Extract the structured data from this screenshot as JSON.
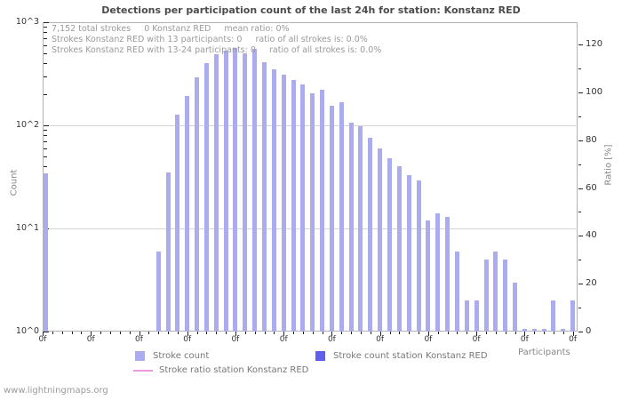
{
  "chart": {
    "title": "Detections per participation count of the last 24h for station: Konstanz RED",
    "info_lines": [
      "7,152 total strokes     0 Konstanz RED     mean ratio: 0%",
      "Strokes Konstanz RED with 13 participants: 0     ratio of all strokes is: 0.0%",
      "Strokes Konstanz RED with 13-24 participants: 0     ratio of all strokes is: 0.0%"
    ],
    "legend": [
      {
        "label": "Stroke count",
        "marker": "square",
        "color": "#aaacee"
      },
      {
        "label": "Stroke count station Konstanz RED",
        "marker": "square",
        "color": "#5f5feb"
      },
      {
        "label": "Stroke ratio station Konstanz RED",
        "marker": "line",
        "color": "#ee99dd"
      }
    ],
    "x_axis_title": "Participants",
    "y_axis_title": "Count",
    "y2_axis_title": "Ratio [%]",
    "footer": "www.lightningmaps.org"
  },
  "chart_data": {
    "type": "bar",
    "title": "Detections per participation count of the last 24h for station: Konstanz RED",
    "xlabel": "Participants",
    "ylabel": "Count",
    "y2label": "Ratio [%]",
    "y_scale": "log",
    "ylim": [
      1,
      1000
    ],
    "y_tick_labels": [
      "10^0",
      "10^1",
      "10^2",
      "10^3"
    ],
    "y2lim": [
      0,
      120
    ],
    "y2_ticks": [
      0,
      20,
      40,
      60,
      80,
      100,
      120
    ],
    "grid": true,
    "legend_position": "bottom",
    "x_tick_count": 56,
    "x_label_every": 5,
    "x_tick_label_text": "0f",
    "stats": {
      "total_strokes": "7,152",
      "station_strokes": "0",
      "mean_ratio": "0%",
      "strokes_13_participants": "0",
      "ratio_13": "0.0%",
      "strokes_13_24_participants": "0",
      "ratio_13_24": "0.0%"
    },
    "series": [
      {
        "name": "Stroke count",
        "type": "bar",
        "color": "#aaacee",
        "points": [
          [
            0,
            34
          ],
          [
            12,
            6
          ],
          [
            13,
            35
          ],
          [
            14,
            127
          ],
          [
            15,
            193
          ],
          [
            16,
            292
          ],
          [
            17,
            401
          ],
          [
            18,
            490
          ],
          [
            19,
            530
          ],
          [
            20,
            563
          ],
          [
            21,
            500
          ],
          [
            22,
            550
          ],
          [
            23,
            410
          ],
          [
            24,
            349
          ],
          [
            25,
            310
          ],
          [
            26,
            276
          ],
          [
            27,
            250
          ],
          [
            28,
            204
          ],
          [
            29,
            221
          ],
          [
            30,
            155
          ],
          [
            31,
            167
          ],
          [
            32,
            106
          ],
          [
            33,
            98
          ],
          [
            34,
            76
          ],
          [
            35,
            60
          ],
          [
            36,
            48
          ],
          [
            37,
            40
          ],
          [
            38,
            33
          ],
          [
            39,
            29
          ],
          [
            40,
            12
          ],
          [
            41,
            14
          ],
          [
            42,
            13
          ],
          [
            43,
            6
          ],
          [
            44,
            2
          ],
          [
            45,
            2
          ],
          [
            46,
            5
          ],
          [
            47,
            6
          ],
          [
            48,
            5
          ],
          [
            49,
            3
          ],
          [
            50,
            1
          ],
          [
            51,
            1
          ],
          [
            52,
            1
          ],
          [
            53,
            2
          ],
          [
            54,
            1
          ],
          [
            55,
            2
          ]
        ]
      },
      {
        "name": "Stroke count station Konstanz RED",
        "type": "bar",
        "color": "#5f5feb",
        "points": []
      },
      {
        "name": "Stroke ratio station Konstanz RED",
        "type": "line",
        "color": "#ee99dd",
        "points": []
      }
    ]
  }
}
